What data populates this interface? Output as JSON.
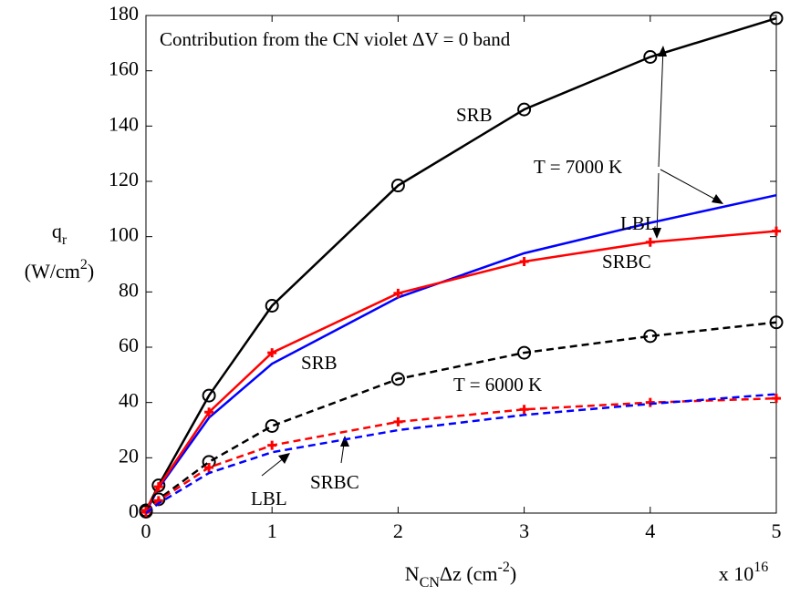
{
  "chart_data": {
    "type": "line",
    "annotations": [
      "Contribution from the CN violet ΔV = 0 band",
      "T = 7000 K",
      "T = 6000 K"
    ],
    "x_label": {
      "symbol": "N",
      "subscript": "CN",
      "rest": "Δz  (cm",
      "exponent": "-2",
      "close": ")"
    },
    "x_multiplier": {
      "base": "x 10",
      "exponent": "16"
    },
    "y_label": {
      "symbol": "q",
      "subscript": "r",
      "unit": "(W/cm",
      "exponent": "2",
      "close": ")"
    },
    "x": [
      0,
      0.1,
      0.5,
      1,
      2,
      3,
      4,
      5
    ],
    "xlim": [
      0,
      5
    ],
    "xticks": [
      0,
      1,
      2,
      3,
      4,
      5
    ],
    "ylim": [
      0,
      180
    ],
    "yticks": [
      0,
      20,
      40,
      60,
      80,
      100,
      120,
      140,
      160,
      180
    ],
    "series": [
      {
        "name": "SRB",
        "color": "#000000",
        "dashed": false,
        "marker": "circle",
        "values": [
          1,
          10,
          42.5,
          75,
          118.5,
          146,
          165,
          179
        ]
      },
      {
        "name": "LBL",
        "color": "#0000ff",
        "dashed": false,
        "marker": "none",
        "values": [
          0.5,
          9,
          34.5,
          54,
          78,
          94,
          105,
          115
        ]
      },
      {
        "name": "SRBC",
        "color": "#ff0000",
        "dashed": false,
        "marker": "plus",
        "values": [
          1,
          9.5,
          36.5,
          58,
          79.5,
          91,
          98,
          102
        ]
      },
      {
        "name": "SRB",
        "color": "#000000",
        "dashed": true,
        "marker": "circle",
        "values": [
          0.5,
          5,
          18.5,
          31.5,
          48.5,
          58,
          64,
          69
        ]
      },
      {
        "name": "SRBC",
        "color": "#ff0000",
        "dashed": true,
        "marker": "plus",
        "values": [
          0.3,
          4.5,
          16.5,
          24.5,
          33,
          37.5,
          40,
          41.5
        ]
      },
      {
        "name": "LBL",
        "color": "#0000ff",
        "dashed": true,
        "marker": "none",
        "values": [
          0,
          3.5,
          14.5,
          22,
          30,
          35.5,
          39.5,
          43
        ]
      }
    ]
  }
}
